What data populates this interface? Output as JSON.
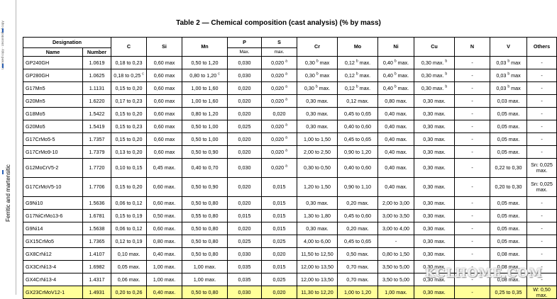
{
  "side": {
    "tiny_text": "Licensed copy · Uncontrolled copy",
    "group_label": "Ferritic and martensitic",
    "accent": "#2b5fb3"
  },
  "title": "Table 2 — Chemical composition (cast analysis) (% by mass)",
  "headers": {
    "designation": "Designation",
    "name": "Name",
    "number": "Number",
    "c": "C",
    "si": "Si",
    "mn": "Mn",
    "p": "P",
    "p_sub": "Max.",
    "s": "S",
    "s_sub": "max.",
    "cr": "Cr",
    "mo": "Mo",
    "ni": "Ni",
    "cu": "Cu",
    "n": "N",
    "v": "V",
    "others": "Others"
  },
  "rows": [
    {
      "name": "GP240GH",
      "number": "1.0619",
      "c": "0,18 to 0,23",
      "si": "0,60 max",
      "mn": "0,50 to 1,20",
      "p": "0,030",
      "s": "0,020",
      "s_sup": "a",
      "cr": "0,30",
      "cr_sup": "b",
      "cr_suf": " max",
      "mo": "0,12",
      "mo_sup": "b",
      "mo_suf": " max.",
      "ni": "0,40",
      "ni_sup": "b",
      "ni_suf": " max.",
      "cu": "0,30 max.",
      "cu_sup": "b",
      "n": "-",
      "v": "0,03",
      "v_sup": "b",
      "v_suf": " max",
      "others": "-"
    },
    {
      "name": "GP280GH",
      "number": "1.0625",
      "c": "0,18 to 0,25",
      "c_sup": "c",
      "si": "0,60 max",
      "mn": "0,80 to 1,20",
      "mn_sup": "c",
      "p": "0,030",
      "s": "0,020",
      "s_sup": "a",
      "cr": "0,30",
      "cr_sup": "b",
      "cr_suf": " max",
      "mo": "0,12",
      "mo_sup": "b",
      "mo_suf": " max.",
      "ni": "0,40",
      "ni_sup": "b",
      "ni_suf": " max.",
      "cu": "0,30 max.",
      "cu_sup": "b",
      "n": "-",
      "v": "0,03",
      "v_sup": "b",
      "v_suf": " max",
      "others": "-"
    },
    {
      "name": "G17Mn5",
      "number": "1.1131",
      "c": "0,15 to 0,20",
      "si": "0,60 max",
      "mn": "1,00 to 1,60",
      "p": "0,020",
      "s": "0,020",
      "s_sup": "a",
      "cr": "0,30",
      "cr_sup": "b",
      "cr_suf": " max.",
      "mo": "0,12",
      "mo_sup": "b",
      "mo_suf": " max.",
      "ni": "0,40",
      "ni_sup": "b",
      "ni_suf": " max.",
      "cu": "0,30 max.",
      "cu_sup": "b",
      "n": "-",
      "v": "0,03",
      "v_sup": "b",
      "v_suf": " max",
      "others": "-"
    },
    {
      "name": "G20Mn5",
      "number": "1.6220",
      "c": "0,17 to 0,23",
      "si": "0,60 max",
      "mn": "1,00 to 1,60",
      "p": "0,020",
      "s": "0,020",
      "s_sup": "a",
      "cr": "0,30 max.",
      "mo": "0,12 max.",
      "ni": "0,80 max.",
      "cu": "0,30 max.",
      "n": "-",
      "v": "0,03 max.",
      "others": "-"
    },
    {
      "name": "G18Mo5",
      "number": "1.5422",
      "c": "0,15 to 0,20",
      "si": "0,60 max",
      "mn": "0,80 to 1,20",
      "p": "0,020",
      "s": "0,020",
      "cr": "0,30 max.",
      "mo": "0,45 to 0,65",
      "ni": "0,40 max.",
      "cu": "0,30 max.",
      "n": "-",
      "v": "0,05 max.",
      "others": "-"
    },
    {
      "name": "G20Mo5",
      "number": "1.5419",
      "c": "0,15 to 0,23",
      "si": "0,60 max",
      "mn": "0,50 to 1,00",
      "p": "0,025",
      "s": "0,020",
      "s_sup": "a",
      "cr": "0,30 max.",
      "mo": "0,40 to 0,60",
      "ni": "0,40 max.",
      "cu": "0,30 max.",
      "n": "-",
      "v": "0,05 max.",
      "others": "-"
    },
    {
      "name": "G17CrMo5-5",
      "number": "1.7357",
      "c": "0,15 to 0,20",
      "si": "0,60 max",
      "mn": "0,50 to 1,00",
      "p": "0,020",
      "s": "0,020",
      "s_sup": "a",
      "cr": "1,00 to 1,50",
      "mo": "0,45 to 0,65",
      "ni": "0,40 max.",
      "cu": "0,30 max.",
      "n": "-",
      "v": "0,05 max.",
      "others": "-"
    },
    {
      "name": "G17CrMo9-10",
      "number": "1.7379",
      "c": "0,13 to 0,20",
      "si": "0,60 max",
      "mn": "0,50 to 0,90",
      "p": "0,020",
      "s": "0,020",
      "s_sup": "a",
      "cr": "2,00 to 2,50",
      "mo": "0,90 to 1,20",
      "ni": "0,40 max.",
      "cu": "0,30 max.",
      "n": "-",
      "v": "0,05 max.",
      "others": "-"
    },
    {
      "name": "G12MoCrV5-2",
      "number": "1.7720",
      "c": "0,10 to 0,15",
      "si": "0,45 max.",
      "mn": "0,40 to 0,70",
      "p": "0,030",
      "s": "0,020",
      "s_sup": "a",
      "cr": "0,30 to 0,50",
      "mo": "0,40 to 0,60",
      "ni": "0,40 max.",
      "cu": "0,30 max.",
      "n": "-",
      "v": "0,22 to 0,30",
      "others": "Sn: 0,025 max.",
      "tall": true
    },
    {
      "name": "G17CrMoV5-10",
      "number": "1.7706",
      "c": "0,15 to 0,20",
      "si": "0,60 max.",
      "mn": "0,50 to 0,90",
      "p": "0,020",
      "s": "0,015",
      "cr": "1,20 to 1,50",
      "mo": "0,90 to 1,10",
      "ni": "0,40 max.",
      "cu": "0,30 max.",
      "n": "-",
      "v": "0,20 to 0,30",
      "others": "Sn: 0,025 max.",
      "tall": true
    },
    {
      "name": "G9Ni10",
      "number": "1.5636",
      "c": "0,06 to 0,12",
      "si": "0,60 max.",
      "mn": "0,50 to 0,80",
      "p": "0,020",
      "s": "0,015",
      "cr": "0,30 max.",
      "mo": "0,20 max.",
      "ni": "2,00 to 3,00",
      "cu": "0,30 max.",
      "n": "-",
      "v": "0,05 max.",
      "others": "-"
    },
    {
      "name": "G17NiCrMo13-6",
      "number": "1.6781",
      "c": "0,15 to 0,19",
      "si": "0,50 max.",
      "mn": "0,55 to 0,80",
      "p": "0,015",
      "s": "0,015",
      "cr": "1,30 to 1,80",
      "mo": "0,45 to 0,60",
      "ni": "3,00 to 3,50",
      "cu": "0,30 max.",
      "n": "-",
      "v": "0,05 max.",
      "others": "-"
    },
    {
      "name": "G9Ni14",
      "number": "1.5638",
      "c": "0,06 to 0,12",
      "si": "0,60 max.",
      "mn": "0,50 to 0,80",
      "p": "0,020",
      "s": "0,015",
      "cr": "0,30 max.",
      "mo": "0,20 max.",
      "ni": "3,00 to 4,00",
      "cu": "0,30 max.",
      "n": "-",
      "v": "0,05 max.",
      "others": "-"
    },
    {
      "name": "GX15CrMo5",
      "number": "1.7365",
      "c": "0,12 to 0,19",
      "si": "0,80 max.",
      "mn": "0,50 to 0,80",
      "p": "0,025",
      "s": "0,025",
      "cr": "4,00 to 6,00",
      "mo": "0,45 to 0,65",
      "ni": "-",
      "cu": "0,30 max.",
      "n": "-",
      "v": "0,05 max.",
      "others": "-"
    },
    {
      "name": "GX8CrNi12",
      "number": "1.4107",
      "c": "0,10 max.",
      "si": "0,40 max.",
      "mn": "0,50 to 0,80",
      "p": "0,030",
      "s": "0,020",
      "cr": "11,50 to 12,50",
      "mo": "0,50 max.",
      "ni": "0,80 to 1,50",
      "cu": "0,30 max.",
      "n": "-",
      "v": "0,08 max.",
      "others": "-"
    },
    {
      "name": "GX3CrNi13-4",
      "number": "1.6982",
      "c": "0,05 max.",
      "si": "1,00 max.",
      "mn": "1,00 max.",
      "p": "0,035",
      "s": "0,015",
      "cr": "12,00 to 13,50",
      "mo": "0,70 max.",
      "ni": "3,50 to 5,00",
      "cu": "0,30 max.",
      "n": "-",
      "v": "0,08 max.",
      "others": "-"
    },
    {
      "name": "GX4CrNi13-4",
      "number": "1.4317",
      "c": "0,06 max.",
      "si": "1,00 max.",
      "mn": "1,00 max.",
      "p": "0,035",
      "s": "0,025",
      "cr": "12,00 to 13,50",
      "mo": "0,70 max.",
      "ni": "3,50 to 5,00",
      "cu": "0,30 max.",
      "n": "-",
      "v": "0,08 max.",
      "others": "-"
    },
    {
      "name": "GX23CrMoV12-1",
      "number": "1.4931",
      "c": "0,20 to 0,26",
      "si": "0,40 max.",
      "mn": "0,50 to 0,80",
      "p": "0,030",
      "s": "0,020",
      "cr": "11,30 to 12,20",
      "mo": "1,00 to 1,20",
      "ni": "1,00 max.",
      "cu": "0,30 max.",
      "n": "-",
      "v": "0,25 to 0,35",
      "others": "W: 0,50 max.",
      "highlight": true,
      "highlight_color": "#ffff99"
    }
  ],
  "watermark": "KCLHOME.COM"
}
